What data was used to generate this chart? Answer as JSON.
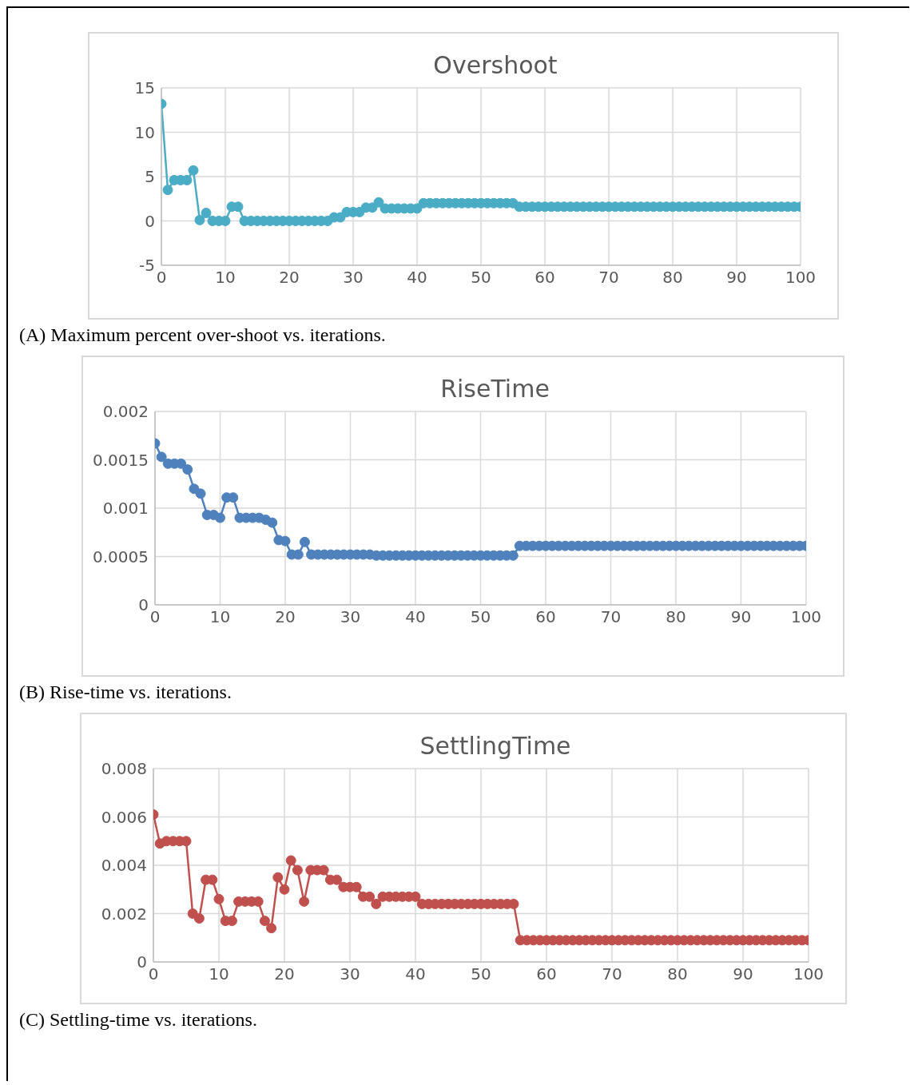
{
  "chart_data": [
    {
      "type": "line",
      "title": "Overshoot",
      "annotations": [
        "(A) Maximum percent over-shoot vs. iterations."
      ],
      "x": [
        0,
        1,
        2,
        3,
        4,
        5,
        6,
        7,
        8,
        9,
        10,
        11,
        12,
        13,
        14,
        15,
        16,
        17,
        18,
        19,
        20,
        21,
        22,
        23,
        24,
        25,
        26,
        27,
        28,
        29,
        30,
        31,
        32,
        33,
        34,
        35,
        36,
        37,
        38,
        39,
        40,
        41,
        42,
        43,
        44,
        45,
        46,
        47,
        48,
        49,
        50,
        51,
        52,
        53,
        54,
        55,
        56,
        57,
        58,
        59,
        60,
        61,
        62,
        63,
        64,
        65,
        66,
        67,
        68,
        69,
        70,
        71,
        72,
        73,
        74,
        75,
        76,
        77,
        78,
        79,
        80,
        81,
        82,
        83,
        84,
        85,
        86,
        87,
        88,
        89,
        90,
        91,
        92,
        93,
        94,
        95,
        96,
        97,
        98,
        99,
        100
      ],
      "series": [
        {
          "color": "#4bacc6",
          "values": [
            13.2,
            3.5,
            4.6,
            4.6,
            4.6,
            5.7,
            0.1,
            0.9,
            0,
            0,
            0,
            1.6,
            1.6,
            0,
            0,
            0,
            0,
            0,
            0,
            0,
            0,
            0,
            0,
            0,
            0,
            0,
            0,
            0.4,
            0.4,
            1.0,
            1.0,
            1.0,
            1.5,
            1.5,
            2.1,
            1.4,
            1.4,
            1.4,
            1.4,
            1.4,
            1.4,
            2.0,
            2.0,
            2.0,
            2.0,
            2.0,
            2.0,
            2.0,
            2.0,
            2.0,
            2.0,
            2.0,
            2.0,
            2.0,
            2.0,
            2.0,
            1.6,
            1.6,
            1.6,
            1.6,
            1.6,
            1.6,
            1.6,
            1.6,
            1.6,
            1.6,
            1.6,
            1.6,
            1.6,
            1.6,
            1.6,
            1.6,
            1.6,
            1.6,
            1.6,
            1.6,
            1.6,
            1.6,
            1.6,
            1.6,
            1.6,
            1.6,
            1.6,
            1.6,
            1.6,
            1.6,
            1.6,
            1.6,
            1.6,
            1.6,
            1.6,
            1.6,
            1.6,
            1.6,
            1.6,
            1.6,
            1.6,
            1.6,
            1.6,
            1.6,
            1.6
          ]
        }
      ],
      "xlim": [
        0,
        100
      ],
      "xticks": [
        0,
        10,
        20,
        30,
        40,
        50,
        60,
        70,
        80,
        90,
        100
      ],
      "ylim": [
        -5,
        15
      ],
      "yticks": [
        -5,
        0,
        5,
        10,
        15
      ],
      "grid": true,
      "marker": "circle"
    },
    {
      "type": "line",
      "title": "RiseTime",
      "annotations": [
        "(B) Rise-time vs. iterations."
      ],
      "x": [
        0,
        1,
        2,
        3,
        4,
        5,
        6,
        7,
        8,
        9,
        10,
        11,
        12,
        13,
        14,
        15,
        16,
        17,
        18,
        19,
        20,
        21,
        22,
        23,
        24,
        25,
        26,
        27,
        28,
        29,
        30,
        31,
        32,
        33,
        34,
        35,
        36,
        37,
        38,
        39,
        40,
        41,
        42,
        43,
        44,
        45,
        46,
        47,
        48,
        49,
        50,
        51,
        52,
        53,
        54,
        55,
        56,
        57,
        58,
        59,
        60,
        61,
        62,
        63,
        64,
        65,
        66,
        67,
        68,
        69,
        70,
        71,
        72,
        73,
        74,
        75,
        76,
        77,
        78,
        79,
        80,
        81,
        82,
        83,
        84,
        85,
        86,
        87,
        88,
        89,
        90,
        91,
        92,
        93,
        94,
        95,
        96,
        97,
        98,
        99,
        100
      ],
      "series": [
        {
          "color": "#4f81bd",
          "values": [
            0.00167,
            0.00153,
            0.00146,
            0.00146,
            0.00146,
            0.0014,
            0.0012,
            0.00115,
            0.00093,
            0.00093,
            0.0009,
            0.00111,
            0.00111,
            0.0009,
            0.0009,
            0.0009,
            0.0009,
            0.00088,
            0.00085,
            0.00067,
            0.00066,
            0.00052,
            0.00052,
            0.00065,
            0.00052,
            0.00052,
            0.00052,
            0.00052,
            0.00052,
            0.00052,
            0.00052,
            0.00052,
            0.00052,
            0.00052,
            0.00051,
            0.00051,
            0.00051,
            0.00051,
            0.00051,
            0.00051,
            0.00051,
            0.00051,
            0.00051,
            0.00051,
            0.00051,
            0.00051,
            0.00051,
            0.00051,
            0.00051,
            0.00051,
            0.00051,
            0.00051,
            0.00051,
            0.00051,
            0.00051,
            0.00051,
            0.00061,
            0.00061,
            0.00061,
            0.00061,
            0.00061,
            0.00061,
            0.00061,
            0.00061,
            0.00061,
            0.00061,
            0.00061,
            0.00061,
            0.00061,
            0.00061,
            0.00061,
            0.00061,
            0.00061,
            0.00061,
            0.00061,
            0.00061,
            0.00061,
            0.00061,
            0.00061,
            0.00061,
            0.00061,
            0.00061,
            0.00061,
            0.00061,
            0.00061,
            0.00061,
            0.00061,
            0.00061,
            0.00061,
            0.00061,
            0.00061,
            0.00061,
            0.00061,
            0.00061,
            0.00061,
            0.00061,
            0.00061,
            0.00061,
            0.00061,
            0.00061,
            0.00061
          ]
        }
      ],
      "xlim": [
        0,
        100
      ],
      "xticks": [
        0,
        10,
        20,
        30,
        40,
        50,
        60,
        70,
        80,
        90,
        100
      ],
      "ylim": [
        0,
        0.002
      ],
      "yticks": [
        0,
        0.0005,
        0.001,
        0.0015,
        0.002
      ],
      "grid": true,
      "marker": "circle"
    },
    {
      "type": "line",
      "title": "SettlingTime",
      "annotations": [
        "(C) Settling-time vs. iterations."
      ],
      "x": [
        0,
        1,
        2,
        3,
        4,
        5,
        6,
        7,
        8,
        9,
        10,
        11,
        12,
        13,
        14,
        15,
        16,
        17,
        18,
        19,
        20,
        21,
        22,
        23,
        24,
        25,
        26,
        27,
        28,
        29,
        30,
        31,
        32,
        33,
        34,
        35,
        36,
        37,
        38,
        39,
        40,
        41,
        42,
        43,
        44,
        45,
        46,
        47,
        48,
        49,
        50,
        51,
        52,
        53,
        54,
        55,
        56,
        57,
        58,
        59,
        60,
        61,
        62,
        63,
        64,
        65,
        66,
        67,
        68,
        69,
        70,
        71,
        72,
        73,
        74,
        75,
        76,
        77,
        78,
        79,
        80,
        81,
        82,
        83,
        84,
        85,
        86,
        87,
        88,
        89,
        90,
        91,
        92,
        93,
        94,
        95,
        96,
        97,
        98,
        99,
        100
      ],
      "series": [
        {
          "color": "#c0504d",
          "values": [
            0.0061,
            0.0049,
            0.005,
            0.005,
            0.005,
            0.005,
            0.002,
            0.0018,
            0.0034,
            0.0034,
            0.0026,
            0.0017,
            0.0017,
            0.0025,
            0.0025,
            0.0025,
            0.0025,
            0.0017,
            0.0014,
            0.0035,
            0.003,
            0.0042,
            0.0038,
            0.0025,
            0.0038,
            0.0038,
            0.0038,
            0.0034,
            0.0034,
            0.0031,
            0.0031,
            0.0031,
            0.0027,
            0.0027,
            0.0024,
            0.0027,
            0.0027,
            0.0027,
            0.0027,
            0.0027,
            0.0027,
            0.0024,
            0.0024,
            0.0024,
            0.0024,
            0.0024,
            0.0024,
            0.0024,
            0.0024,
            0.0024,
            0.0024,
            0.0024,
            0.0024,
            0.0024,
            0.0024,
            0.0024,
            0.0009,
            0.0009,
            0.0009,
            0.0009,
            0.0009,
            0.0009,
            0.0009,
            0.0009,
            0.0009,
            0.0009,
            0.0009,
            0.0009,
            0.0009,
            0.0009,
            0.0009,
            0.0009,
            0.0009,
            0.0009,
            0.0009,
            0.0009,
            0.0009,
            0.0009,
            0.0009,
            0.0009,
            0.0009,
            0.0009,
            0.0009,
            0.0009,
            0.0009,
            0.0009,
            0.0009,
            0.0009,
            0.0009,
            0.0009,
            0.0009,
            0.0009,
            0.0009,
            0.0009,
            0.0009,
            0.0009,
            0.0009,
            0.0009,
            0.0009,
            0.0009,
            0.0009
          ]
        }
      ],
      "xlim": [
        0,
        100
      ],
      "xticks": [
        0,
        10,
        20,
        30,
        40,
        50,
        60,
        70,
        80,
        90,
        100
      ],
      "ylim": [
        0,
        0.008
      ],
      "yticks": [
        0,
        0.002,
        0.004,
        0.006,
        0.008
      ],
      "grid": true,
      "marker": "circle"
    }
  ]
}
